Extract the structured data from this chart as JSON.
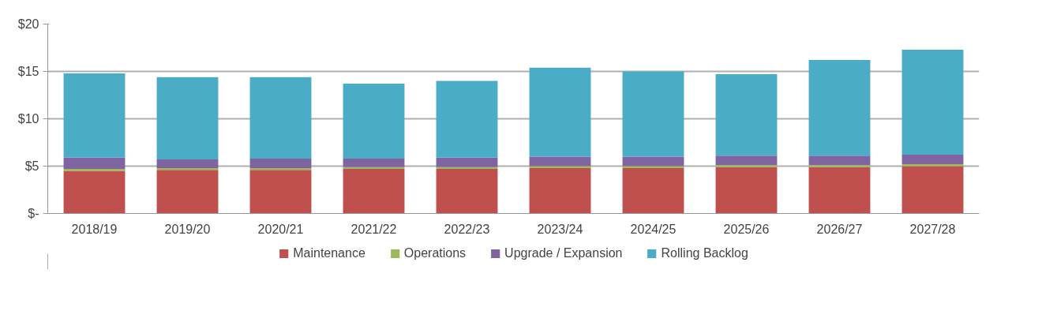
{
  "chart_data": {
    "type": "bar",
    "stacked": true,
    "categories": [
      "2018/19",
      "2019/20",
      "2020/21",
      "2021/22",
      "2022/23",
      "2023/24",
      "2024/25",
      "2025/26",
      "2026/27",
      "2027/28"
    ],
    "series": [
      {
        "name": "Maintenance",
        "color": "#c0504d",
        "values": [
          4.5,
          4.6,
          4.6,
          4.7,
          4.7,
          4.8,
          4.8,
          4.9,
          4.9,
          5.0
        ]
      },
      {
        "name": "Operations",
        "color": "#9bbb59",
        "values": [
          0.2,
          0.2,
          0.2,
          0.2,
          0.2,
          0.2,
          0.2,
          0.2,
          0.2,
          0.2
        ]
      },
      {
        "name": "Upgrade / Expansion",
        "color": "#8064a2",
        "values": [
          1.2,
          0.9,
          1.0,
          0.9,
          1.0,
          1.0,
          1.0,
          1.0,
          1.0,
          1.0
        ]
      },
      {
        "name": "Rolling Backlog",
        "color": "#4bacc6",
        "values": [
          8.9,
          8.7,
          8.6,
          7.9,
          8.1,
          9.4,
          9.0,
          8.6,
          10.1,
          11.1
        ]
      }
    ],
    "ylim": [
      0,
      20
    ],
    "yticks": [
      {
        "value": 0,
        "label": "$-"
      },
      {
        "value": 5,
        "label": "$5"
      },
      {
        "value": 10,
        "label": "$10"
      },
      {
        "value": 15,
        "label": "$15"
      },
      {
        "value": 20,
        "label": "$20"
      }
    ],
    "grid": "y",
    "legend": "bottom"
  }
}
